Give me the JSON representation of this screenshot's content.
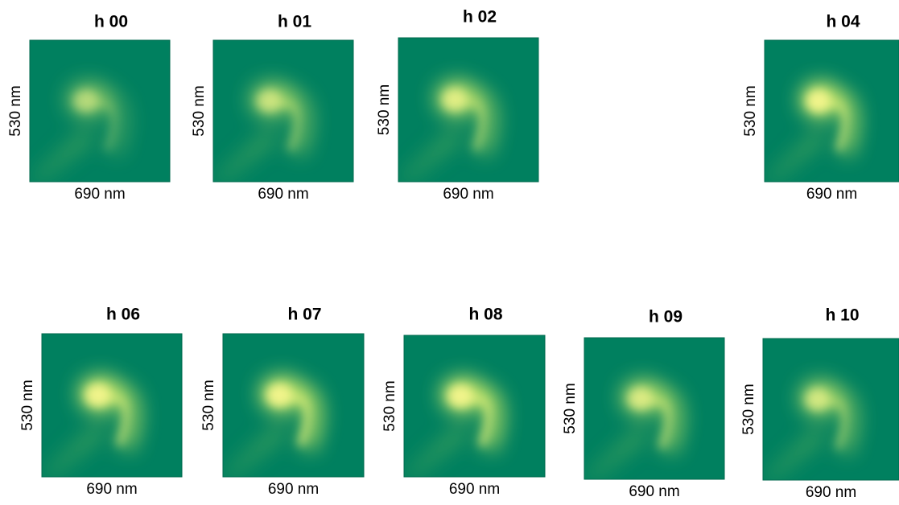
{
  "panels": [
    {
      "title": "h 00",
      "xlabel": "690 nm",
      "ylabel": "530 nm"
    },
    {
      "title": "h 01",
      "xlabel": "690 nm",
      "ylabel": "530 nm"
    },
    {
      "title": "h 02",
      "xlabel": "690 nm",
      "ylabel": "530 nm"
    },
    {
      "title": "h 04",
      "xlabel": "690 nm",
      "ylabel": "530 nm"
    },
    {
      "title": "h 06",
      "xlabel": "690 nm",
      "ylabel": "530 nm"
    },
    {
      "title": "h 07",
      "xlabel": "690 nm",
      "ylabel": "530 nm"
    },
    {
      "title": "h 08",
      "xlabel": "690 nm",
      "ylabel": "530 nm"
    },
    {
      "title": "h 09",
      "xlabel": "690 nm",
      "ylabel": "530 nm"
    },
    {
      "title": "h 10",
      "xlabel": "690 nm",
      "ylabel": "530 nm"
    }
  ]
}
